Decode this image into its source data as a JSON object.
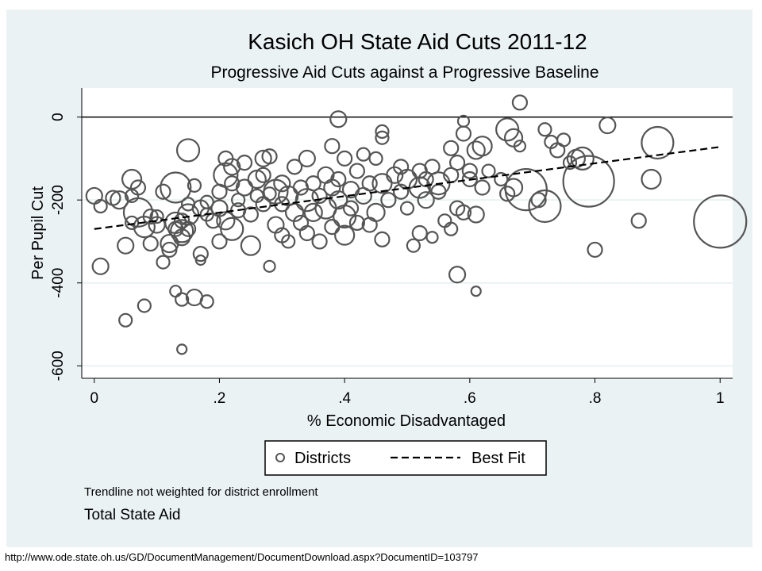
{
  "chart_data": {
    "type": "scatter",
    "title": "Kasich OH State Aid Cuts 2011-12",
    "subtitle": "Progressive Aid Cuts against a Progressive Baseline",
    "xlabel": "% Economic Disadvantaged",
    "ylabel": "Per Pupil Cut",
    "xlim": [
      -0.02,
      1.02
    ],
    "ylim": [
      -630,
      70
    ],
    "x_ticks": [
      0,
      0.2,
      0.4,
      0.6,
      0.8,
      1
    ],
    "x_tick_labels": [
      "0",
      ".2",
      ".4",
      ".6",
      ".8",
      "1"
    ],
    "y_ticks": [
      0,
      -200,
      -400,
      -600
    ],
    "y_tick_labels": [
      "0",
      "-200",
      "-400",
      "-600"
    ],
    "grid": true,
    "legend": {
      "position": "bottom",
      "entries": [
        {
          "label": "Districts",
          "marker": "hollow-circle"
        },
        {
          "label": "Best Fit",
          "marker": "dashed-line"
        }
      ]
    },
    "notes": [
      "Trendline not weighted for district enrollment",
      "Total State Aid"
    ],
    "fit_line": {
      "x": [
        0,
        1
      ],
      "y": [
        -270,
        -72
      ]
    },
    "series": [
      {
        "name": "Districts",
        "points": [
          {
            "x": 0.0,
            "y": -190,
            "s": 10
          },
          {
            "x": 0.01,
            "y": -215,
            "s": 8
          },
          {
            "x": 0.01,
            "y": -360,
            "s": 10
          },
          {
            "x": 0.03,
            "y": -195,
            "s": 9
          },
          {
            "x": 0.04,
            "y": -200,
            "s": 11
          },
          {
            "x": 0.05,
            "y": -310,
            "s": 10
          },
          {
            "x": 0.05,
            "y": -490,
            "s": 8
          },
          {
            "x": 0.06,
            "y": -150,
            "s": 12
          },
          {
            "x": 0.06,
            "y": -190,
            "s": 8
          },
          {
            "x": 0.06,
            "y": -255,
            "s": 8
          },
          {
            "x": 0.07,
            "y": -170,
            "s": 9
          },
          {
            "x": 0.07,
            "y": -230,
            "s": 18
          },
          {
            "x": 0.08,
            "y": -265,
            "s": 13
          },
          {
            "x": 0.08,
            "y": -455,
            "s": 8
          },
          {
            "x": 0.09,
            "y": -240,
            "s": 9
          },
          {
            "x": 0.09,
            "y": -305,
            "s": 9
          },
          {
            "x": 0.1,
            "y": -260,
            "s": 10
          },
          {
            "x": 0.1,
            "y": -240,
            "s": 8
          },
          {
            "x": 0.11,
            "y": -180,
            "s": 9
          },
          {
            "x": 0.11,
            "y": -350,
            "s": 8
          },
          {
            "x": 0.12,
            "y": -320,
            "s": 9
          },
          {
            "x": 0.12,
            "y": -305,
            "s": 11
          },
          {
            "x": 0.13,
            "y": -170,
            "s": 19
          },
          {
            "x": 0.13,
            "y": -255,
            "s": 13
          },
          {
            "x": 0.13,
            "y": -270,
            "s": 9
          },
          {
            "x": 0.13,
            "y": -420,
            "s": 7
          },
          {
            "x": 0.14,
            "y": -275,
            "s": 14
          },
          {
            "x": 0.14,
            "y": -250,
            "s": 9
          },
          {
            "x": 0.14,
            "y": -290,
            "s": 10
          },
          {
            "x": 0.14,
            "y": -440,
            "s": 8
          },
          {
            "x": 0.14,
            "y": -560,
            "s": 6
          },
          {
            "x": 0.15,
            "y": -80,
            "s": 14
          },
          {
            "x": 0.15,
            "y": -210,
            "s": 8
          },
          {
            "x": 0.15,
            "y": -235,
            "s": 13
          },
          {
            "x": 0.15,
            "y": -270,
            "s": 9
          },
          {
            "x": 0.16,
            "y": -165,
            "s": 8
          },
          {
            "x": 0.16,
            "y": -435,
            "s": 10
          },
          {
            "x": 0.17,
            "y": -220,
            "s": 10
          },
          {
            "x": 0.17,
            "y": -330,
            "s": 9
          },
          {
            "x": 0.17,
            "y": -345,
            "s": 6
          },
          {
            "x": 0.18,
            "y": -205,
            "s": 8
          },
          {
            "x": 0.18,
            "y": -235,
            "s": 8
          },
          {
            "x": 0.18,
            "y": -445,
            "s": 8
          },
          {
            "x": 0.19,
            "y": -250,
            "s": 9
          },
          {
            "x": 0.2,
            "y": -180,
            "s": 9
          },
          {
            "x": 0.2,
            "y": -220,
            "s": 10
          },
          {
            "x": 0.2,
            "y": -300,
            "s": 9
          },
          {
            "x": 0.21,
            "y": -100,
            "s": 9
          },
          {
            "x": 0.21,
            "y": -140,
            "s": 15
          },
          {
            "x": 0.21,
            "y": -250,
            "s": 11
          },
          {
            "x": 0.22,
            "y": -120,
            "s": 10
          },
          {
            "x": 0.22,
            "y": -160,
            "s": 9
          },
          {
            "x": 0.22,
            "y": -270,
            "s": 14
          },
          {
            "x": 0.23,
            "y": -200,
            "s": 8
          },
          {
            "x": 0.23,
            "y": -225,
            "s": 9
          },
          {
            "x": 0.24,
            "y": -110,
            "s": 9
          },
          {
            "x": 0.24,
            "y": -170,
            "s": 10
          },
          {
            "x": 0.25,
            "y": -235,
            "s": 9
          },
          {
            "x": 0.25,
            "y": -310,
            "s": 12
          },
          {
            "x": 0.26,
            "y": -150,
            "s": 11
          },
          {
            "x": 0.26,
            "y": -190,
            "s": 8
          },
          {
            "x": 0.27,
            "y": -100,
            "s": 10
          },
          {
            "x": 0.27,
            "y": -140,
            "s": 9
          },
          {
            "x": 0.27,
            "y": -210,
            "s": 9
          },
          {
            "x": 0.28,
            "y": -95,
            "s": 9
          },
          {
            "x": 0.28,
            "y": -185,
            "s": 8
          },
          {
            "x": 0.28,
            "y": -360,
            "s": 7
          },
          {
            "x": 0.29,
            "y": -180,
            "s": 15
          },
          {
            "x": 0.29,
            "y": -260,
            "s": 10
          },
          {
            "x": 0.3,
            "y": -160,
            "s": 10
          },
          {
            "x": 0.3,
            "y": -210,
            "s": 9
          },
          {
            "x": 0.3,
            "y": -285,
            "s": 9
          },
          {
            "x": 0.31,
            "y": -190,
            "s": 12
          },
          {
            "x": 0.31,
            "y": -300,
            "s": 8
          },
          {
            "x": 0.32,
            "y": -120,
            "s": 9
          },
          {
            "x": 0.32,
            "y": -230,
            "s": 11
          },
          {
            "x": 0.33,
            "y": -170,
            "s": 9
          },
          {
            "x": 0.33,
            "y": -255,
            "s": 9
          },
          {
            "x": 0.34,
            "y": -100,
            "s": 10
          },
          {
            "x": 0.34,
            "y": -200,
            "s": 14
          },
          {
            "x": 0.34,
            "y": -280,
            "s": 9
          },
          {
            "x": 0.35,
            "y": -160,
            "s": 9
          },
          {
            "x": 0.35,
            "y": -230,
            "s": 11
          },
          {
            "x": 0.36,
            "y": -190,
            "s": 9
          },
          {
            "x": 0.36,
            "y": -300,
            "s": 9
          },
          {
            "x": 0.37,
            "y": -140,
            "s": 10
          },
          {
            "x": 0.37,
            "y": -220,
            "s": 13
          },
          {
            "x": 0.38,
            "y": -70,
            "s": 9
          },
          {
            "x": 0.38,
            "y": -170,
            "s": 10
          },
          {
            "x": 0.38,
            "y": -265,
            "s": 9
          },
          {
            "x": 0.39,
            "y": -5,
            "s": 10
          },
          {
            "x": 0.39,
            "y": -150,
            "s": 9
          },
          {
            "x": 0.39,
            "y": -200,
            "s": 11
          },
          {
            "x": 0.4,
            "y": -100,
            "s": 9
          },
          {
            "x": 0.4,
            "y": -240,
            "s": 14
          },
          {
            "x": 0.4,
            "y": -285,
            "s": 12
          },
          {
            "x": 0.41,
            "y": -175,
            "s": 10
          },
          {
            "x": 0.41,
            "y": -220,
            "s": 9
          },
          {
            "x": 0.42,
            "y": -130,
            "s": 9
          },
          {
            "x": 0.42,
            "y": -255,
            "s": 9
          },
          {
            "x": 0.43,
            "y": -90,
            "s": 8
          },
          {
            "x": 0.43,
            "y": -190,
            "s": 10
          },
          {
            "x": 0.44,
            "y": -160,
            "s": 9
          },
          {
            "x": 0.44,
            "y": -260,
            "s": 9
          },
          {
            "x": 0.45,
            "y": -100,
            "s": 8
          },
          {
            "x": 0.45,
            "y": -230,
            "s": 11
          },
          {
            "x": 0.46,
            "y": -35,
            "s": 8
          },
          {
            "x": 0.46,
            "y": -50,
            "s": 8
          },
          {
            "x": 0.46,
            "y": -160,
            "s": 12
          },
          {
            "x": 0.46,
            "y": -295,
            "s": 9
          },
          {
            "x": 0.47,
            "y": -200,
            "s": 9
          },
          {
            "x": 0.48,
            "y": -140,
            "s": 10
          },
          {
            "x": 0.49,
            "y": -120,
            "s": 9
          },
          {
            "x": 0.49,
            "y": -180,
            "s": 9
          },
          {
            "x": 0.5,
            "y": -150,
            "s": 12
          },
          {
            "x": 0.5,
            "y": -220,
            "s": 8
          },
          {
            "x": 0.51,
            "y": -310,
            "s": 8
          },
          {
            "x": 0.52,
            "y": -130,
            "s": 9
          },
          {
            "x": 0.52,
            "y": -170,
            "s": 13
          },
          {
            "x": 0.52,
            "y": -280,
            "s": 9
          },
          {
            "x": 0.53,
            "y": -150,
            "s": 9
          },
          {
            "x": 0.53,
            "y": -200,
            "s": 10
          },
          {
            "x": 0.54,
            "y": -120,
            "s": 9
          },
          {
            "x": 0.54,
            "y": -290,
            "s": 7
          },
          {
            "x": 0.55,
            "y": -160,
            "s": 14
          },
          {
            "x": 0.55,
            "y": -180,
            "s": 9
          },
          {
            "x": 0.56,
            "y": -250,
            "s": 8
          },
          {
            "x": 0.57,
            "y": -75,
            "s": 9
          },
          {
            "x": 0.57,
            "y": -140,
            "s": 9
          },
          {
            "x": 0.57,
            "y": -270,
            "s": 8
          },
          {
            "x": 0.58,
            "y": -110,
            "s": 9
          },
          {
            "x": 0.58,
            "y": -220,
            "s": 9
          },
          {
            "x": 0.58,
            "y": -380,
            "s": 10
          },
          {
            "x": 0.59,
            "y": -10,
            "s": 7
          },
          {
            "x": 0.59,
            "y": -40,
            "s": 9
          },
          {
            "x": 0.59,
            "y": -230,
            "s": 9
          },
          {
            "x": 0.6,
            "y": -130,
            "s": 9
          },
          {
            "x": 0.6,
            "y": -150,
            "s": 9
          },
          {
            "x": 0.61,
            "y": -80,
            "s": 11
          },
          {
            "x": 0.61,
            "y": -235,
            "s": 10
          },
          {
            "x": 0.61,
            "y": -420,
            "s": 6
          },
          {
            "x": 0.62,
            "y": -70,
            "s": 12
          },
          {
            "x": 0.62,
            "y": -170,
            "s": 9
          },
          {
            "x": 0.63,
            "y": -130,
            "s": 8
          },
          {
            "x": 0.65,
            "y": -150,
            "s": 8
          },
          {
            "x": 0.66,
            "y": -30,
            "s": 14
          },
          {
            "x": 0.66,
            "y": -185,
            "s": 9
          },
          {
            "x": 0.67,
            "y": -50,
            "s": 11
          },
          {
            "x": 0.67,
            "y": -170,
            "s": 11
          },
          {
            "x": 0.68,
            "y": -70,
            "s": 7
          },
          {
            "x": 0.68,
            "y": 35,
            "s": 9
          },
          {
            "x": 0.69,
            "y": -175,
            "s": 26
          },
          {
            "x": 0.71,
            "y": -200,
            "s": 9
          },
          {
            "x": 0.72,
            "y": -30,
            "s": 8
          },
          {
            "x": 0.72,
            "y": -215,
            "s": 20
          },
          {
            "x": 0.73,
            "y": -60,
            "s": 8
          },
          {
            "x": 0.74,
            "y": -80,
            "s": 9
          },
          {
            "x": 0.75,
            "y": -55,
            "s": 8
          },
          {
            "x": 0.76,
            "y": -110,
            "s": 8
          },
          {
            "x": 0.77,
            "y": -100,
            "s": 11
          },
          {
            "x": 0.78,
            "y": -100,
            "s": 14
          },
          {
            "x": 0.79,
            "y": -155,
            "s": 32
          },
          {
            "x": 0.8,
            "y": -320,
            "s": 9
          },
          {
            "x": 0.82,
            "y": -20,
            "s": 10
          },
          {
            "x": 0.87,
            "y": -250,
            "s": 9
          },
          {
            "x": 0.89,
            "y": -150,
            "s": 12
          },
          {
            "x": 0.9,
            "y": -62,
            "s": 20
          },
          {
            "x": 1.0,
            "y": -252,
            "s": 33
          }
        ]
      }
    ]
  },
  "footer_source": "http://www.ode.state.oh.us/GD/DocumentManagement/DocumentDownload.aspx?DocumentID=103797",
  "colors": {
    "background": "#eaf2f3",
    "plot_background": "#ffffff",
    "marker": "#555555",
    "gridline": "#eaf2f3",
    "zero_line": "#000000",
    "text": "#000000"
  }
}
